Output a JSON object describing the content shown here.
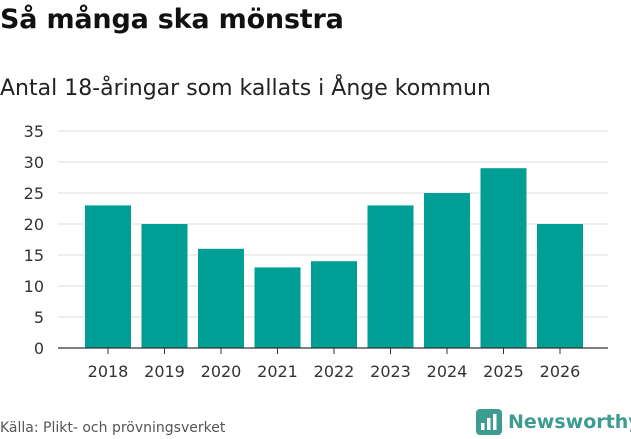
{
  "header": {
    "title": "Så många ska mönstra",
    "subtitle": "Antal 18-åringar som kallats i Ånge kommun"
  },
  "footer": {
    "source": "Källa: Plikt- och prövningsverket",
    "brand": "Newsworthy",
    "brand_icon": "bar-chart-logo-icon"
  },
  "colors": {
    "bar": "#009e94",
    "grid": "#dcdcdc",
    "axis": "#333333",
    "brand": "#3d9b8f"
  },
  "chart_data": {
    "type": "bar",
    "title": "Så många ska mönstra",
    "subtitle": "Antal 18-åringar som kallats i Ånge kommun",
    "categories": [
      "2018",
      "2019",
      "2020",
      "2021",
      "2022",
      "2023",
      "2024",
      "2025",
      "2026"
    ],
    "values": [
      23,
      20,
      16,
      13,
      14,
      23,
      25,
      29,
      20
    ],
    "xlabel": "",
    "ylabel": "",
    "ylim": [
      0,
      35
    ],
    "yticks": [
      0,
      5,
      10,
      15,
      20,
      25,
      30,
      35
    ],
    "grid": true,
    "legend": "none"
  }
}
